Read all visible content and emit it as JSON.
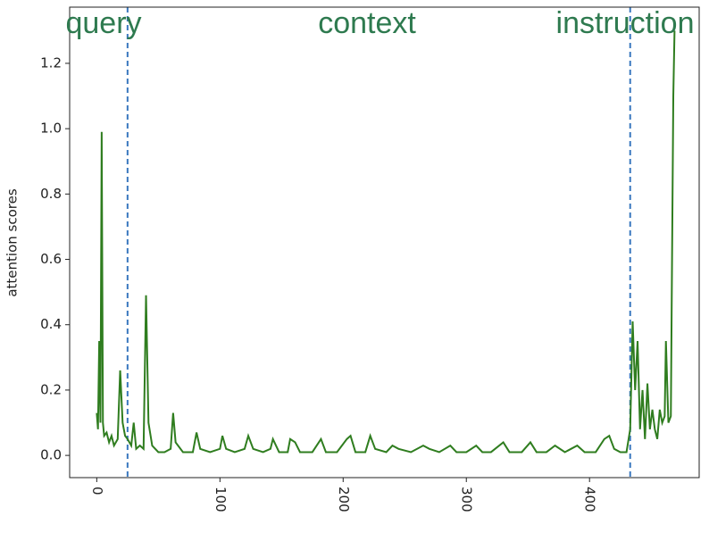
{
  "chart_data": {
    "type": "line",
    "ylabel": "attention scores",
    "annotations": [
      "query",
      "context",
      "instruction"
    ],
    "annotation_color": "#2e7a4f",
    "vlines": [
      25,
      433
    ],
    "vline_color": "#3a78bf",
    "xlim": [
      -22,
      489
    ],
    "ylim": [
      -0.068,
      1.372
    ],
    "xticks": [
      0,
      100,
      200,
      300,
      400
    ],
    "yticks": [
      {
        "value": 0,
        "label": "0.0"
      },
      0.2,
      0.4,
      0.6,
      0.8,
      {
        "value": 1,
        "label": "1.0"
      },
      1.2
    ],
    "x": [
      0,
      1,
      2,
      3,
      4,
      5,
      6,
      8,
      10,
      12,
      14,
      17,
      19,
      21,
      23,
      25,
      28,
      30,
      32,
      35,
      38,
      40,
      42,
      45,
      50,
      55,
      60,
      62,
      64,
      70,
      78,
      81,
      84,
      92,
      100,
      102,
      105,
      112,
      120,
      123,
      127,
      135,
      141,
      143,
      148,
      155,
      157,
      161,
      165,
      175,
      182,
      186,
      195,
      203,
      206,
      210,
      218,
      222,
      226,
      235,
      240,
      245,
      255,
      265,
      270,
      278,
      287,
      292,
      300,
      308,
      313,
      320,
      330,
      335,
      345,
      352,
      357,
      365,
      372,
      380,
      390,
      396,
      405,
      412,
      416,
      420,
      425,
      430,
      433,
      435,
      437,
      439,
      441,
      443,
      445,
      447,
      449,
      451,
      453,
      455,
      457,
      459,
      461,
      462,
      464,
      466,
      468,
      469
    ],
    "series": [
      {
        "name": "attention",
        "color": "#2f7d1f",
        "values": [
          0.13,
          0.08,
          0.35,
          0.1,
          0.99,
          0.1,
          0.06,
          0.07,
          0.04,
          0.06,
          0.03,
          0.05,
          0.26,
          0.1,
          0.06,
          0.05,
          0.03,
          0.1,
          0.02,
          0.03,
          0.02,
          0.49,
          0.1,
          0.03,
          0.01,
          0.01,
          0.02,
          0.13,
          0.04,
          0.01,
          0.01,
          0.07,
          0.02,
          0.01,
          0.02,
          0.06,
          0.02,
          0.01,
          0.02,
          0.06,
          0.02,
          0.01,
          0.02,
          0.05,
          0.01,
          0.01,
          0.05,
          0.04,
          0.01,
          0.01,
          0.05,
          0.01,
          0.01,
          0.05,
          0.06,
          0.01,
          0.01,
          0.06,
          0.02,
          0.01,
          0.03,
          0.02,
          0.01,
          0.03,
          0.02,
          0.01,
          0.03,
          0.01,
          0.01,
          0.03,
          0.01,
          0.01,
          0.04,
          0.01,
          0.01,
          0.04,
          0.01,
          0.01,
          0.03,
          0.01,
          0.03,
          0.01,
          0.01,
          0.05,
          0.06,
          0.02,
          0.01,
          0.01,
          0.08,
          0.41,
          0.2,
          0.35,
          0.08,
          0.2,
          0.05,
          0.22,
          0.08,
          0.14,
          0.08,
          0.05,
          0.14,
          0.1,
          0.12,
          0.35,
          0.1,
          0.12,
          1.1,
          1.3
        ]
      }
    ]
  }
}
